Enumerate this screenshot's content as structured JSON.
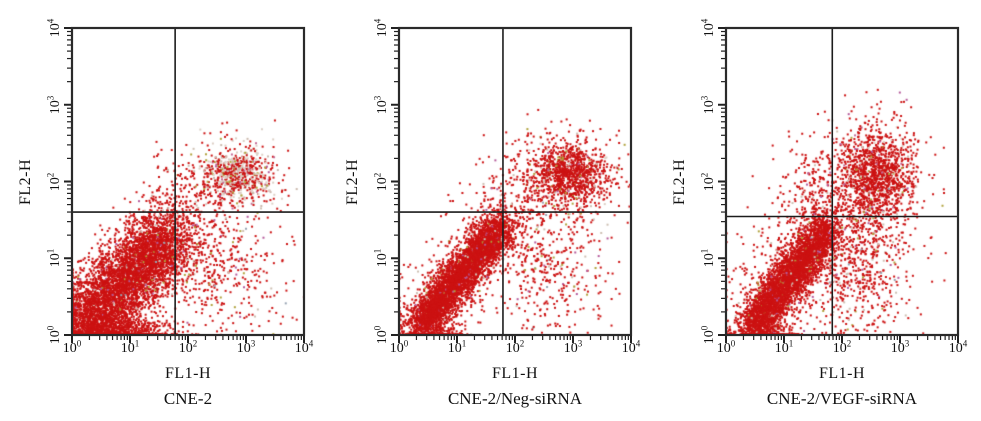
{
  "figure": {
    "description": "Flow cytometry apoptosis dot plots",
    "frame_color": "#2a2a2a",
    "tick_color": "#222222",
    "gate_color": "#1c1c1c",
    "background": "#ffffff",
    "dot_color": "#cc1212"
  },
  "chart_data": [
    {
      "type": "scatter",
      "title": "CNE-2",
      "xlabel": "FL1-H",
      "ylabel": "FL2-H",
      "xscale": "log",
      "yscale": "log",
      "xlim": [
        1,
        10000
      ],
      "ylim": [
        1,
        10000
      ],
      "grid": false,
      "x_ticks": [
        {
          "base": "10",
          "exp": "0"
        },
        {
          "base": "10",
          "exp": "1"
        },
        {
          "base": "10",
          "exp": "2"
        },
        {
          "base": "10",
          "exp": "3"
        },
        {
          "base": "10",
          "exp": "4"
        }
      ],
      "y_ticks": [
        {
          "base": "10",
          "exp": "0"
        },
        {
          "base": "10",
          "exp": "1"
        },
        {
          "base": "10",
          "exp": "2"
        },
        {
          "base": "10",
          "exp": "3"
        },
        {
          "base": "10",
          "exp": "4"
        }
      ],
      "quadrant_gate": {
        "x": 60,
        "y": 40
      },
      "seed": 7,
      "populations": [
        {
          "type": "diag",
          "count": 5000,
          "x0": 0.02,
          "y0": 0.02,
          "x1": 1.7,
          "y1": 1.3,
          "skew": 0.85,
          "wx": 0.3,
          "wy": 0.22,
          "clamp": true,
          "colors": [
            [
              "#cc1212",
              0.96
            ],
            [
              "#cdbfb2",
              0.015
            ],
            [
              "#b0a23c",
              0.01
            ],
            [
              "#b55a9b",
              0.01
            ],
            [
              "#97a3b2",
              0.005
            ]
          ]
        },
        {
          "type": "diag",
          "count": 900,
          "x0": 0.02,
          "y0": 0.03,
          "x1": 1.3,
          "y1": 0.06,
          "skew": 1.0,
          "wx": 0.32,
          "wy": 0.09,
          "clamp": true,
          "colors": [
            [
              "#cc1212",
              1
            ]
          ]
        },
        {
          "type": "gauss",
          "count": 620,
          "cx": 2.85,
          "cy": 2.08,
          "sx": 0.3,
          "sy": 0.17,
          "colors": [
            [
              "#cc1212",
              0.42
            ],
            [
              "#dccfc5",
              0.33
            ],
            [
              "#cbb9ad",
              0.12
            ],
            [
              "#b0a23c",
              0.07
            ],
            [
              "#c46a95",
              0.06
            ]
          ]
        },
        {
          "type": "gauss",
          "count": 220,
          "cx": 2.7,
          "cy": 2.02,
          "sx": 0.5,
          "sy": 0.28,
          "colors": [
            [
              "#cc1212",
              0.9
            ],
            [
              "#cdbfb2",
              0.05
            ],
            [
              "#b0a23c",
              0.025
            ],
            [
              "#b55a9b",
              0.025
            ]
          ]
        },
        {
          "type": "gauss",
          "count": 430,
          "cx": 2.55,
          "cy": 0.85,
          "sx": 0.5,
          "sy": 0.48,
          "colors": [
            [
              "#cc1212",
              0.92
            ],
            [
              "#cdbfb2",
              0.03
            ],
            [
              "#b0a23c",
              0.02
            ],
            [
              "#b55a9b",
              0.02
            ],
            [
              "#97a3b2",
              0.01
            ]
          ]
        },
        {
          "type": "gauss",
          "count": 110,
          "cx": 1.75,
          "cy": 1.8,
          "sx": 0.3,
          "sy": 0.22,
          "colors": [
            [
              "#cc1212",
              0.95
            ],
            [
              "#cdbfb2",
              0.05
            ]
          ]
        },
        {
          "type": "gauss",
          "count": 90,
          "cx": 1.9,
          "cy": 1.1,
          "sx": 0.9,
          "sy": 0.7,
          "colors": [
            [
              "#cc1212",
              0.9
            ],
            [
              "#97a3b2",
              0.05
            ],
            [
              "#b0a23c",
              0.05
            ]
          ]
        }
      ]
    },
    {
      "type": "scatter",
      "title": "CNE-2/Neg-siRNA",
      "xlabel": "FL1-H",
      "ylabel": "FL2-H",
      "xscale": "log",
      "yscale": "log",
      "xlim": [
        1,
        10000
      ],
      "ylim": [
        1,
        10000
      ],
      "grid": false,
      "x_ticks": [
        {
          "base": "10",
          "exp": "0"
        },
        {
          "base": "10",
          "exp": "1"
        },
        {
          "base": "10",
          "exp": "2"
        },
        {
          "base": "10",
          "exp": "3"
        },
        {
          "base": "10",
          "exp": "4"
        }
      ],
      "y_ticks": [
        {
          "base": "10",
          "exp": "0"
        },
        {
          "base": "10",
          "exp": "1"
        },
        {
          "base": "10",
          "exp": "2"
        },
        {
          "base": "10",
          "exp": "3"
        },
        {
          "base": "10",
          "exp": "4"
        }
      ],
      "quadrant_gate": {
        "x": 62,
        "y": 40
      },
      "seed": 13,
      "populations": [
        {
          "type": "diag",
          "count": 4200,
          "x0": 0.35,
          "y0": 0.12,
          "x1": 1.78,
          "y1": 1.42,
          "skew": 1.0,
          "wx": 0.14,
          "wy": 0.13,
          "clamp": true,
          "colors": [
            [
              "#cc1212",
              0.97
            ],
            [
              "#cdbfb2",
              0.01
            ],
            [
              "#b0a23c",
              0.01
            ],
            [
              "#b55a9b",
              0.01
            ]
          ]
        },
        {
          "type": "diag",
          "count": 550,
          "x0": 0.3,
          "y0": 0.1,
          "x1": 1.8,
          "y1": 1.45,
          "skew": 1.0,
          "wx": 0.3,
          "wy": 0.3,
          "clamp": true,
          "colors": [
            [
              "#cc1212",
              0.93
            ],
            [
              "#cdbfb2",
              0.03
            ],
            [
              "#b0a23c",
              0.02
            ],
            [
              "#b55a9b",
              0.02
            ]
          ]
        },
        {
          "type": "diag",
          "count": 130,
          "x0": 0.3,
          "y0": 0.03,
          "x1": 0.95,
          "y1": 0.05,
          "skew": 1.0,
          "wx": 0.25,
          "wy": 0.06,
          "clamp": true,
          "colors": [
            [
              "#cc1212",
              1
            ]
          ]
        },
        {
          "type": "gauss",
          "count": 950,
          "cx": 2.95,
          "cy": 2.1,
          "sx": 0.32,
          "sy": 0.2,
          "colors": [
            [
              "#cc1212",
              0.9
            ],
            [
              "#dccfc5",
              0.05
            ],
            [
              "#b0a23c",
              0.03
            ],
            [
              "#c46a95",
              0.02
            ]
          ]
        },
        {
          "type": "gauss",
          "count": 380,
          "cx": 2.7,
          "cy": 2.05,
          "sx": 0.55,
          "sy": 0.33,
          "colors": [
            [
              "#cc1212",
              0.9
            ],
            [
              "#cdbfb2",
              0.05
            ],
            [
              "#b0a23c",
              0.03
            ],
            [
              "#b55a9b",
              0.02
            ]
          ]
        },
        {
          "type": "gauss",
          "count": 420,
          "cx": 2.6,
          "cy": 0.9,
          "sx": 0.5,
          "sy": 0.5,
          "colors": [
            [
              "#cc1212",
              0.92
            ],
            [
              "#cdbfb2",
              0.03
            ],
            [
              "#b0a23c",
              0.02
            ],
            [
              "#b55a9b",
              0.02
            ],
            [
              "#97a3b2",
              0.01
            ]
          ]
        },
        {
          "type": "gauss",
          "count": 110,
          "cx": 1.95,
          "cy": 1.6,
          "sx": 0.35,
          "sy": 0.35,
          "colors": [
            [
              "#cc1212",
              0.95
            ],
            [
              "#cdbfb2",
              0.05
            ]
          ]
        }
      ]
    },
    {
      "type": "scatter",
      "title": "CNE-2/VEGF-siRNA",
      "xlabel": "FL1-H",
      "ylabel": "FL2-H",
      "xscale": "log",
      "yscale": "log",
      "xlim": [
        1,
        10000
      ],
      "ylim": [
        1,
        10000
      ],
      "grid": false,
      "x_ticks": [
        {
          "base": "10",
          "exp": "0"
        },
        {
          "base": "10",
          "exp": "1"
        },
        {
          "base": "10",
          "exp": "2"
        },
        {
          "base": "10",
          "exp": "3"
        },
        {
          "base": "10",
          "exp": "4"
        }
      ],
      "y_ticks": [
        {
          "base": "10",
          "exp": "0"
        },
        {
          "base": "10",
          "exp": "1"
        },
        {
          "base": "10",
          "exp": "2"
        },
        {
          "base": "10",
          "exp": "3"
        },
        {
          "base": "10",
          "exp": "4"
        }
      ],
      "quadrant_gate": {
        "x": 68,
        "y": 35
      },
      "seed": 21,
      "populations": [
        {
          "type": "diag",
          "count": 3700,
          "x0": 0.45,
          "y0": 0.1,
          "x1": 1.75,
          "y1": 1.38,
          "skew": 1.0,
          "wx": 0.13,
          "wy": 0.15,
          "clamp": true,
          "colors": [
            [
              "#cc1212",
              0.97
            ],
            [
              "#cdbfb2",
              0.01
            ],
            [
              "#b0a23c",
              0.01
            ],
            [
              "#b55a9b",
              0.01
            ]
          ]
        },
        {
          "type": "diag",
          "count": 750,
          "x0": 0.4,
          "y0": 0.1,
          "x1": 1.9,
          "y1": 1.6,
          "skew": 1.0,
          "wx": 0.38,
          "wy": 0.38,
          "clamp": true,
          "colors": [
            [
              "#cc1212",
              0.93
            ],
            [
              "#cdbfb2",
              0.03
            ],
            [
              "#b0a23c",
              0.02
            ],
            [
              "#b55a9b",
              0.02
            ]
          ]
        },
        {
          "type": "diag",
          "count": 170,
          "x0": 0.3,
          "y0": 0.03,
          "x1": 0.9,
          "y1": 0.06,
          "skew": 1.0,
          "wx": 0.25,
          "wy": 0.07,
          "clamp": true,
          "colors": [
            [
              "#cc1212",
              1
            ]
          ]
        },
        {
          "type": "gauss",
          "count": 1050,
          "cx": 2.6,
          "cy": 2.12,
          "sx": 0.3,
          "sy": 0.28,
          "colors": [
            [
              "#cc1212",
              0.92
            ],
            [
              "#dccfc5",
              0.04
            ],
            [
              "#b0a23c",
              0.02
            ],
            [
              "#c46a95",
              0.02
            ]
          ]
        },
        {
          "type": "gauss",
          "count": 480,
          "cx": 2.5,
          "cy": 1.95,
          "sx": 0.5,
          "sy": 0.5,
          "colors": [
            [
              "#cc1212",
              0.92
            ],
            [
              "#cdbfb2",
              0.04
            ],
            [
              "#b0a23c",
              0.02
            ],
            [
              "#b55a9b",
              0.02
            ]
          ]
        },
        {
          "type": "gauss",
          "count": 600,
          "cx": 2.3,
          "cy": 0.9,
          "sx": 0.42,
          "sy": 0.55,
          "colors": [
            [
              "#cc1212",
              0.92
            ],
            [
              "#cdbfb2",
              0.03
            ],
            [
              "#b0a23c",
              0.02
            ],
            [
              "#b55a9b",
              0.02
            ],
            [
              "#97a3b2",
              0.01
            ]
          ]
        },
        {
          "type": "gauss",
          "count": 140,
          "cx": 1.45,
          "cy": 1.9,
          "sx": 0.35,
          "sy": 0.32,
          "colors": [
            [
              "#cc1212",
              0.94
            ],
            [
              "#b55a9b",
              0.03
            ],
            [
              "#cdbfb2",
              0.03
            ]
          ]
        }
      ]
    }
  ]
}
